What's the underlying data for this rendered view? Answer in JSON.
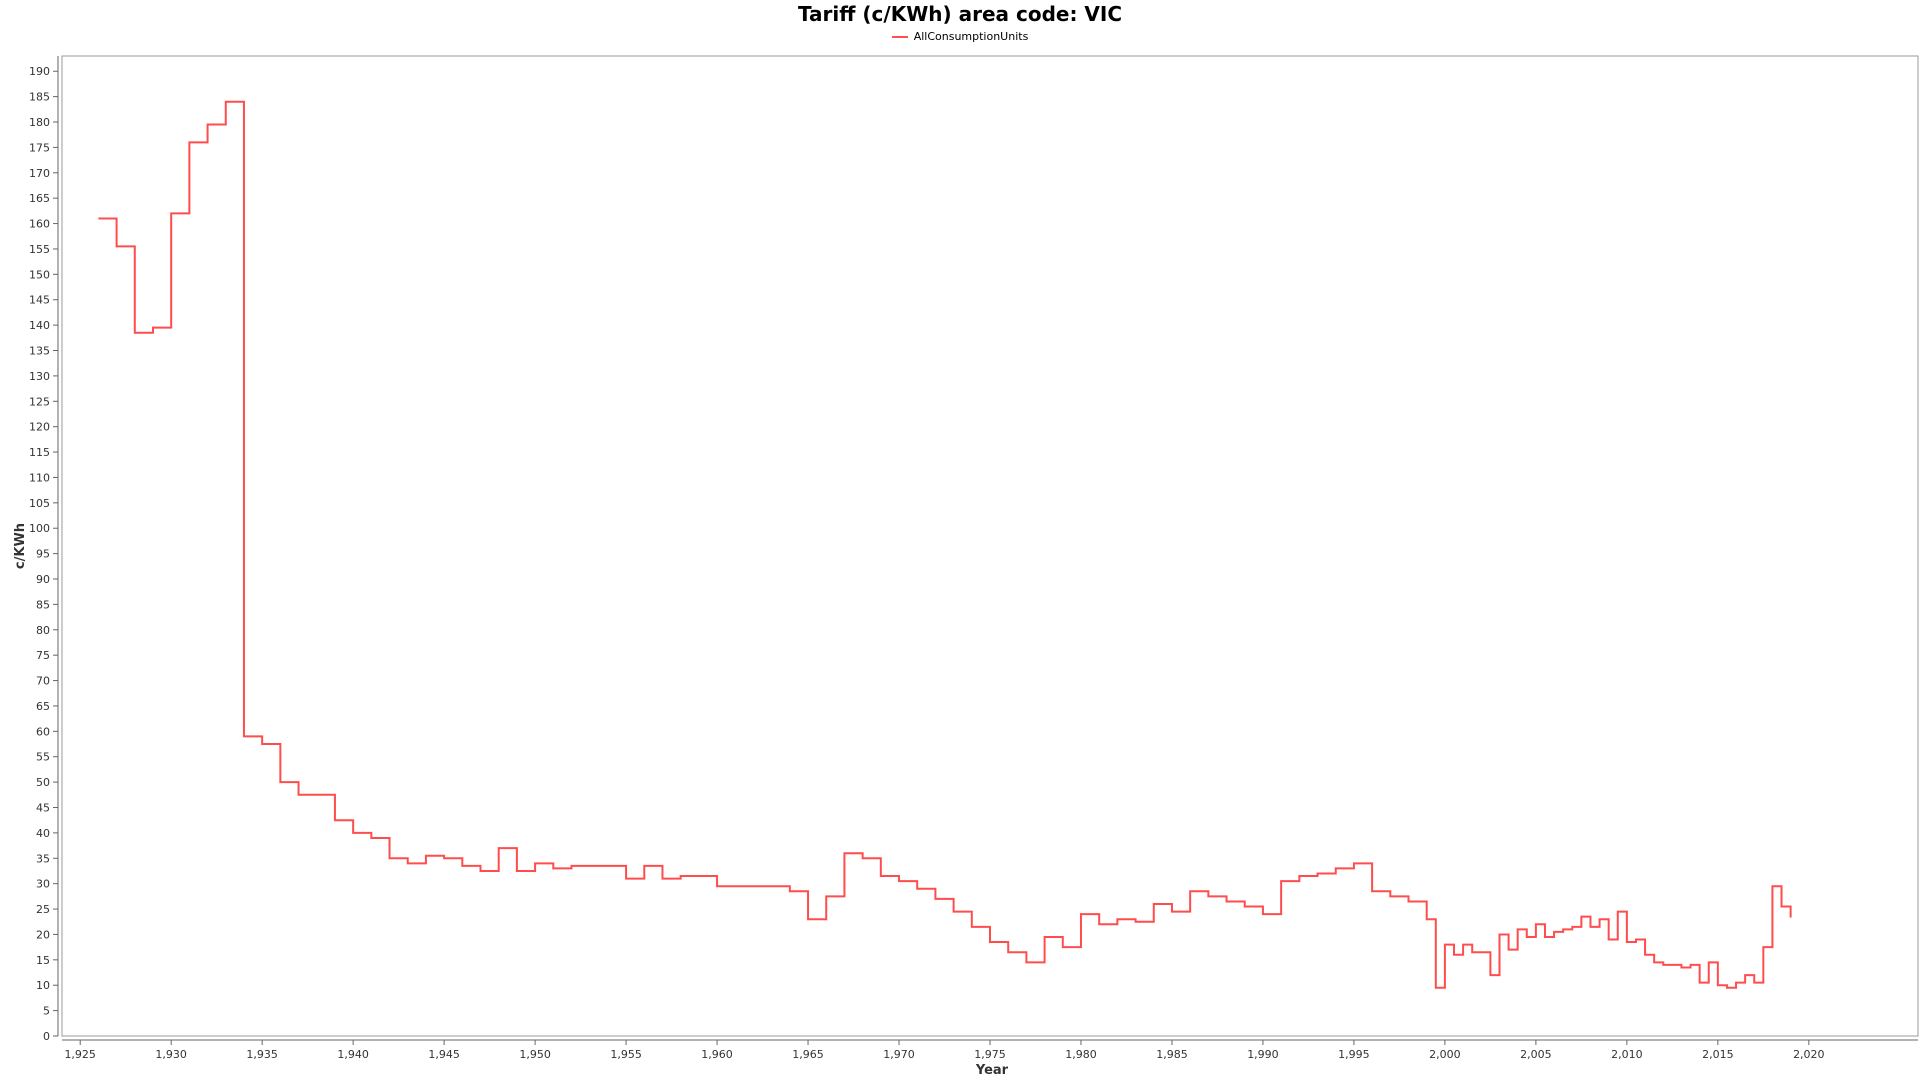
{
  "chart_data": {
    "type": "line",
    "title": "Tariff (c/KWh) area code: VIC",
    "xlabel": "Year",
    "ylabel": "c/KWh",
    "xlim": [
      1924,
      2026
    ],
    "ylim": [
      0,
      193
    ],
    "x_ticks": [
      1925,
      1930,
      1935,
      1940,
      1945,
      1950,
      1955,
      1960,
      1965,
      1970,
      1975,
      1980,
      1985,
      1990,
      1995,
      2000,
      2005,
      2010,
      2015,
      2020
    ],
    "x_tick_labels": [
      "1,925",
      "1,930",
      "1,935",
      "1,940",
      "1,945",
      "1,950",
      "1,955",
      "1,960",
      "1,965",
      "1,970",
      "1,975",
      "1,980",
      "1,985",
      "1,990",
      "1,995",
      "2,000",
      "2,005",
      "2,010",
      "2,015",
      "2,020"
    ],
    "y_ticks": [
      0,
      5,
      10,
      15,
      20,
      25,
      30,
      35,
      40,
      45,
      50,
      55,
      60,
      65,
      70,
      75,
      80,
      85,
      90,
      95,
      100,
      105,
      110,
      115,
      120,
      125,
      130,
      135,
      140,
      145,
      150,
      155,
      160,
      165,
      170,
      175,
      180,
      185,
      190
    ],
    "grid": false,
    "legend": "top-center",
    "series": [
      {
        "name": "AllConsumptionUnits",
        "color": "#ff4d4d",
        "step": "post",
        "x": [
          1926,
          1927,
          1928,
          1929,
          1930,
          1931,
          1932,
          1933,
          1934,
          1935,
          1936,
          1937,
          1938,
          1939,
          1940,
          1941,
          1942,
          1943,
          1944,
          1945,
          1946,
          1947,
          1948,
          1949,
          1950,
          1951,
          1952,
          1953,
          1954,
          1955,
          1956,
          1957,
          1958,
          1959,
          1960,
          1961,
          1962,
          1963,
          1964,
          1965,
          1966,
          1967,
          1968,
          1969,
          1970,
          1971,
          1972,
          1973,
          1974,
          1975,
          1976,
          1977,
          1978,
          1979,
          1980,
          1981,
          1982,
          1983,
          1984,
          1985,
          1986,
          1987,
          1988,
          1989,
          1990,
          1991,
          1992,
          1993,
          1994,
          1995,
          1996,
          1997,
          1998,
          1999,
          1999.5,
          2000,
          2000.5,
          2001,
          2001.5,
          2002,
          2002.5,
          2003,
          2003.5,
          2004,
          2004.5,
          2005,
          2005.5,
          2006,
          2006.5,
          2007,
          2007.5,
          2008,
          2008.5,
          2009,
          2009.5,
          2010,
          2010.5,
          2011,
          2011.5,
          2012,
          2012.5,
          2013,
          2013.5,
          2014,
          2014.5,
          2015,
          2015.5,
          2016,
          2016.5,
          2017,
          2017.5,
          2018,
          2018.5,
          2019
        ],
        "y": [
          161,
          155.5,
          138.5,
          139.5,
          162,
          176,
          179.5,
          184,
          59,
          57.5,
          50,
          47.5,
          47.5,
          42.5,
          40,
          39,
          35,
          34,
          35.5,
          35,
          33.5,
          32.5,
          37,
          32.5,
          34,
          33,
          33.5,
          33.5,
          33.5,
          31,
          33.5,
          31,
          31.5,
          31.5,
          29.5,
          29.5,
          29.5,
          29.5,
          28.5,
          23,
          27.5,
          36,
          35,
          31.5,
          30.5,
          29,
          27,
          24.5,
          21.5,
          18.5,
          16.5,
          14.5,
          19.5,
          17.5,
          24,
          22,
          23,
          22.5,
          26,
          24.5,
          28.5,
          27.5,
          26.5,
          25.5,
          24,
          30.5,
          31.5,
          32,
          33,
          34,
          28.5,
          27.5,
          26.5,
          23,
          9.5,
          18,
          16,
          18,
          16.5,
          16.5,
          12,
          20,
          17,
          21,
          19.5,
          22,
          19.5,
          20.5,
          21,
          21.5,
          23.5,
          21.5,
          23,
          19,
          24.5,
          18.5,
          19,
          16,
          14.5,
          14,
          14,
          13.5,
          14,
          10.5,
          14.5,
          10,
          9.5,
          10.5,
          12,
          10.5,
          17.5,
          29.5,
          25.5,
          23.5
        ]
      }
    ]
  }
}
